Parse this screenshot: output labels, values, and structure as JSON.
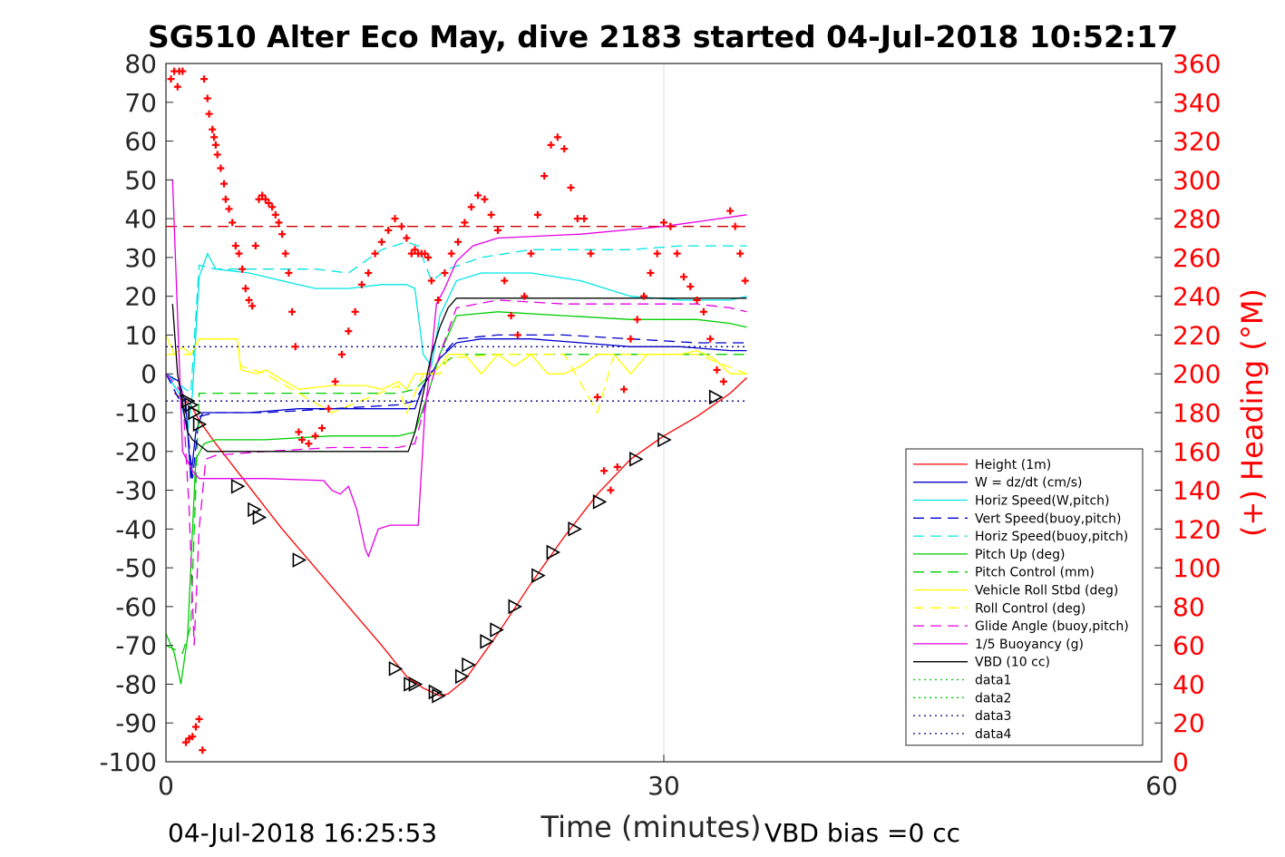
{
  "footer": {
    "timestamp": "04-Jul-2018 16:25:53",
    "vbd_bias": "VBD bias =0 cc"
  },
  "chart_data": {
    "type": "line",
    "title": "SG510 Alter Eco May, dive 2183 started 04-Jul-2018 10:52:17",
    "xlabel": "Time (minutes)",
    "ylabel": "",
    "y2label": "(+) Heading (°M)",
    "xlim": [
      0,
      60
    ],
    "ylim": [
      -100,
      80
    ],
    "y2lim": [
      0,
      360
    ],
    "xticks": [
      "0",
      "30",
      "60"
    ],
    "yticks": [
      "80",
      "70",
      "60",
      "50",
      "40",
      "30",
      "20",
      "10",
      "0",
      "-10",
      "-20",
      "-30",
      "-40",
      "-50",
      "-60",
      "-70",
      "-80",
      "-90",
      "-100"
    ],
    "y2ticks": [
      "360",
      "340",
      "320",
      "300",
      "280",
      "260",
      "240",
      "220",
      "200",
      "180",
      "160",
      "140",
      "120",
      "100",
      "80",
      "60",
      "40",
      "20",
      "0"
    ],
    "grid": "x-major",
    "legend_position": "bottom-right",
    "series": [
      {
        "name": "Height (1m)",
        "color": "#ff0000",
        "style": "solid",
        "axis": "left",
        "x": [
          0.5,
          1.5,
          2.0,
          3.0,
          5.0,
          7.0,
          9.0,
          11.0,
          13.0,
          14.5,
          15.5,
          16.0,
          16.5,
          17.0,
          18.0,
          19.0,
          20.0,
          22.0,
          24.0,
          26.0,
          28.0,
          30.0,
          32.0,
          34.0,
          35.0
        ],
        "values": [
          -5,
          -8,
          -12,
          -18,
          -29,
          -40,
          -50,
          -60,
          -70,
          -78,
          -81,
          -82,
          -83,
          -82.5,
          -79,
          -73,
          -67,
          -54,
          -42,
          -31,
          -22,
          -16,
          -11,
          -5,
          -1
        ]
      },
      {
        "name": "W = dz/dt (cm/s)",
        "color": "#0000cc",
        "style": "solid",
        "axis": "left",
        "x": [
          0,
          0.8,
          1.2,
          1.5,
          1.8,
          2.2,
          3,
          5,
          8,
          10,
          12,
          14,
          15,
          15.5,
          16,
          16.5,
          17.5,
          19,
          22,
          25,
          28,
          31,
          34,
          35
        ],
        "values": [
          0,
          -2,
          -8,
          -27,
          -15,
          -10,
          -10,
          -10,
          -9,
          -9,
          -9,
          -9,
          -9,
          -3,
          0,
          4,
          8,
          9,
          9,
          8,
          7,
          7,
          6,
          6
        ]
      },
      {
        "name": "Horiz Speed(W,pitch)",
        "color": "#00e5e5",
        "style": "solid",
        "axis": "left",
        "x": [
          0,
          0.8,
          1.3,
          1.6,
          2.0,
          2.5,
          3,
          5,
          7,
          9,
          11,
          13,
          14.5,
          15,
          15.5,
          16,
          16.5,
          17.5,
          19,
          22,
          25,
          28,
          31,
          33,
          34,
          35
        ],
        "values": [
          0,
          -5,
          -15,
          -5,
          25,
          31,
          27,
          26,
          24,
          22,
          22,
          23,
          23,
          22,
          5,
          2,
          15,
          24,
          26,
          26,
          24,
          20,
          19,
          19,
          19,
          20
        ]
      },
      {
        "name": "Vert Speed(buoy,pitch)",
        "color": "#0000cc",
        "style": "dashed",
        "axis": "left",
        "x": [
          0,
          1.2,
          1.6,
          2.0,
          3,
          6,
          10,
          14,
          15,
          15.8,
          16.5,
          17.5,
          20,
          24,
          28,
          32,
          35
        ],
        "values": [
          0,
          -10,
          -27,
          -11,
          -10,
          -10,
          -9,
          -8,
          -7,
          -1,
          4,
          9,
          10,
          10,
          9,
          8,
          8
        ]
      },
      {
        "name": "Horiz Speed(buoy,pitch)",
        "color": "#00e5e5",
        "style": "dashed",
        "axis": "left",
        "x": [
          0,
          1.5,
          2.0,
          3,
          6,
          9,
          11,
          13,
          14.5,
          15.2,
          16,
          17,
          19,
          22,
          25,
          28,
          31,
          34,
          35
        ],
        "values": [
          0,
          -5,
          28,
          27,
          27,
          27,
          26,
          32,
          34,
          33,
          24,
          27,
          30,
          32,
          32,
          32,
          33,
          33,
          33
        ]
      },
      {
        "name": "Pitch Up (deg)",
        "color": "#00cc00",
        "style": "solid",
        "axis": "left",
        "x": [
          0,
          0.5,
          0.9,
          1.3,
          1.8,
          2.3,
          3,
          6,
          10,
          14,
          15,
          15.8,
          16.5,
          17.5,
          20,
          24,
          28,
          32,
          34,
          35
        ],
        "values": [
          -67,
          -72,
          -80,
          -68,
          -22,
          -18,
          -17,
          -17,
          -16,
          -16,
          -15,
          -5,
          5,
          15,
          16,
          15,
          14,
          14,
          13,
          12
        ]
      },
      {
        "name": "Pitch Control (mm)",
        "color": "#00cc00",
        "style": "dashed",
        "axis": "left",
        "x": [
          0,
          1.0,
          1.5,
          2.0,
          3,
          8,
          14,
          15,
          15.5,
          16.5,
          17.5,
          25,
          35
        ],
        "values": [
          -70,
          -72,
          -65,
          -5,
          -5,
          -5,
          -5,
          -4,
          -2,
          2,
          5,
          5,
          5
        ]
      },
      {
        "name": "Vehicle Roll Stbd (deg)",
        "color": "#ffff00",
        "style": "solid",
        "axis": "left",
        "x": [
          0,
          0.5,
          1.0,
          1.5,
          2.0,
          4.3,
          4.5,
          5.5,
          6,
          8,
          10,
          12,
          13,
          14,
          14.5,
          15,
          16,
          16.5,
          17,
          18,
          19,
          20,
          21,
          22,
          23,
          24,
          25,
          26,
          27,
          28,
          29,
          30,
          31,
          32,
          33,
          34,
          35
        ],
        "values": [
          10,
          5,
          7,
          5,
          9,
          9,
          1,
          0,
          1,
          -4,
          -3,
          -3,
          -4,
          -2,
          -4,
          0,
          0,
          2,
          5,
          5,
          0,
          5,
          2,
          5,
          0,
          0,
          2,
          5,
          5,
          0,
          5,
          5,
          5,
          6,
          4,
          0,
          0
        ]
      },
      {
        "name": "Roll Control (deg)",
        "color": "#ffff00",
        "style": "dashed",
        "axis": "left",
        "x": [
          0,
          1.5,
          2.0,
          4.3,
          4.5,
          6,
          10,
          14,
          14.5,
          15.5,
          16.5,
          17,
          20,
          24,
          26,
          27,
          28,
          30,
          32,
          35
        ],
        "values": [
          5,
          5,
          9,
          9,
          2,
          0,
          -10,
          -3,
          -10,
          0,
          0,
          4,
          5,
          5,
          -10,
          5,
          5,
          5,
          5,
          0
        ]
      },
      {
        "name": "Glide Angle (buoy,pitch)",
        "color": "#e500e5",
        "style": "dashed",
        "axis": "left",
        "x": [
          0,
          1.0,
          1.4,
          1.7,
          2.0,
          2.4,
          3,
          6,
          10,
          14,
          15,
          15.8,
          16.5,
          17.5,
          20,
          24,
          28,
          32,
          34,
          35
        ],
        "values": [
          0,
          -5,
          -35,
          -70,
          -40,
          -22,
          -21,
          -20,
          -19,
          -19,
          -18,
          -5,
          5,
          17,
          19,
          18,
          18,
          18,
          17,
          16
        ]
      },
      {
        "name": "1/5 Buoyancy (g)",
        "color": "#e500e5",
        "style": "solid",
        "axis": "left",
        "x": [
          0.4,
          1.0,
          1.6,
          2.0,
          3,
          6,
          9.5,
          10,
          10.5,
          11,
          11.5,
          12,
          12.2,
          12.8,
          13.5,
          15.2,
          15.6,
          16,
          16.3,
          16.8,
          17.5,
          18.5,
          20,
          25,
          30,
          35
        ],
        "values": [
          50,
          -20,
          -25,
          -27,
          -27,
          -27,
          -27.5,
          -30,
          -31,
          -29,
          -35,
          -45,
          -47,
          -40,
          -39,
          -39,
          -10,
          5,
          18,
          22,
          29,
          33,
          35,
          36,
          38,
          41
        ]
      },
      {
        "name": "VBD (10 cc)",
        "color": "#000000",
        "style": "solid",
        "axis": "left",
        "x": [
          0.4,
          0.7,
          1.0,
          1.3,
          1.6,
          1.9,
          2.2,
          2.5,
          3,
          6,
          10,
          14.6,
          15,
          15.5,
          16,
          16.5,
          17,
          17.5,
          20,
          25,
          30,
          35
        ],
        "values": [
          18,
          0,
          -8,
          -15,
          -17,
          -18,
          -19,
          -20,
          -20,
          -20,
          -20,
          -20,
          -15,
          -5,
          5,
          12,
          17,
          19.5,
          19.5,
          19.5,
          19.5,
          19.5
        ]
      },
      {
        "name": "data1",
        "color": "#00cc00",
        "style": "dotted",
        "axis": "left",
        "x": [],
        "values": []
      },
      {
        "name": "data2",
        "color": "#00cc00",
        "style": "dotted",
        "axis": "left",
        "x": [],
        "values": []
      },
      {
        "name": "data3",
        "color": "#000080",
        "style": "dotted",
        "axis": "left",
        "x": [
          0,
          35
        ],
        "values": [
          7,
          7
        ]
      },
      {
        "name": "data4",
        "color": "#000080",
        "style": "dotted",
        "axis": "left",
        "x": [
          0,
          35
        ],
        "values": [
          -7,
          -7
        ]
      }
    ],
    "reference_line": {
      "color": "#cc0000",
      "style": "dashed",
      "axis": "left",
      "x": [
        0,
        35
      ],
      "values": [
        38,
        38
      ]
    },
    "heading_points": {
      "color": "#ff0000",
      "marker": "+",
      "axis": "right",
      "x": [
        0.3,
        0.5,
        0.7,
        0.8,
        1.0,
        1.2,
        1.4,
        1.6,
        1.8,
        2.0,
        2.2,
        2.3,
        2.5,
        2.6,
        2.8,
        2.9,
        3.0,
        3.1,
        3.3,
        3.5,
        3.6,
        3.8,
        4.0,
        4.2,
        4.4,
        4.6,
        4.8,
        5.0,
        5.2,
        5.4,
        5.6,
        5.8,
        6.0,
        6.2,
        6.4,
        6.6,
        6.8,
        7.0,
        7.2,
        7.4,
        7.6,
        7.8,
        8.0,
        8.2,
        8.6,
        9.0,
        9.4,
        9.8,
        10.2,
        10.6,
        11.0,
        11.4,
        11.8,
        12.2,
        12.6,
        13.0,
        13.4,
        13.8,
        14.2,
        14.5,
        14.8,
        15.0,
        15.2,
        15.4,
        15.6,
        15.8,
        16.0,
        16.4,
        16.8,
        17.2,
        17.6,
        18.0,
        18.4,
        18.8,
        19.2,
        19.6,
        20.0,
        20.4,
        20.8,
        21.2,
        21.6,
        22.0,
        22.4,
        22.8,
        23.2,
        23.6,
        24.0,
        24.4,
        24.8,
        25.2,
        25.6,
        26.0,
        26.4,
        26.8,
        27.2,
        27.6,
        28.0,
        28.4,
        28.8,
        29.2,
        29.6,
        30.0,
        30.4,
        30.8,
        31.2,
        31.6,
        32.0,
        32.4,
        32.8,
        33.2,
        33.6,
        34.0,
        34.3,
        34.6,
        34.9
      ],
      "values": [
        352,
        356,
        348,
        356,
        356,
        10,
        12,
        13,
        18,
        22,
        6,
        352,
        342,
        334,
        326,
        322,
        318,
        313,
        306,
        298,
        290,
        285,
        278,
        266,
        262,
        254,
        244,
        238,
        235,
        266,
        290,
        292,
        290,
        288,
        286,
        282,
        278,
        272,
        262,
        252,
        232,
        214,
        170,
        166,
        164,
        168,
        172,
        182,
        196,
        210,
        222,
        232,
        246,
        252,
        262,
        268,
        274,
        280,
        276,
        270,
        262,
        264,
        262,
        262,
        262,
        260,
        248,
        238,
        252,
        262,
        268,
        278,
        286,
        292,
        290,
        282,
        274,
        248,
        230,
        220,
        240,
        262,
        282,
        302,
        318,
        322,
        316,
        296,
        280,
        280,
        262,
        188,
        150,
        140,
        152,
        192,
        218,
        228,
        240,
        252,
        262,
        278,
        276,
        262,
        250,
        245,
        238,
        232,
        218,
        202,
        196,
        284,
        276,
        262,
        248
      ]
    },
    "triangle_markers": {
      "color": "#000000",
      "marker": "triangle-right",
      "axis": "left",
      "x": [
        1.3,
        1.5,
        1.7,
        2.0,
        4.3,
        5.3,
        5.6,
        8.0,
        13.8,
        14.7,
        15.0,
        16.2,
        16.4,
        17.8,
        18.2,
        19.3,
        19.9,
        21.0,
        22.4,
        23.3,
        24.6,
        26.1,
        28.3,
        30.0,
        33.1
      ],
      "values": [
        -7,
        -8,
        -10,
        -13,
        -29,
        -35,
        -37,
        -48,
        -76,
        -80,
        -80,
        -82,
        -83,
        -78,
        -75,
        -69,
        -66,
        -60,
        -52,
        -46,
        -40,
        -33,
        -22,
        -17,
        -6
      ]
    }
  }
}
